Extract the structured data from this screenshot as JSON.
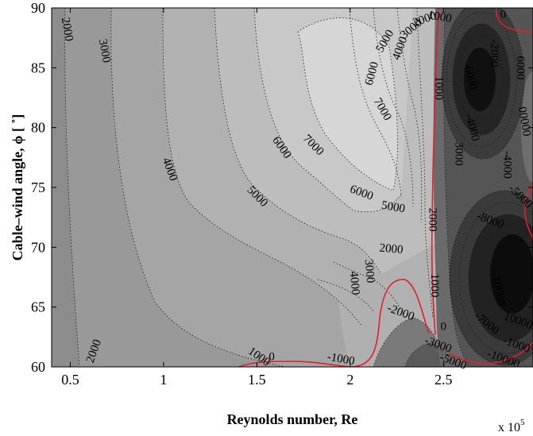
{
  "chart_data": {
    "type": "contour",
    "title": "",
    "xlabel": "Reynolds number, Re",
    "ylabel": "Cable–wind angle, ϕ [ ˚]",
    "x_multiplier_label": "x 10",
    "x_multiplier_exp": "5",
    "xlim": [
      0.4,
      2.98
    ],
    "ylim": [
      60,
      90
    ],
    "xticks": [
      0.5,
      1,
      1.5,
      2,
      2.5
    ],
    "xtick_labels": [
      "0.5",
      "1",
      "1.5",
      "2",
      "2.5"
    ],
    "yticks": [
      60,
      65,
      70,
      75,
      80,
      85,
      90
    ],
    "ytick_labels": [
      "60",
      "65",
      "70",
      "75",
      "80",
      "85",
      "90"
    ],
    "zero_contour_color": "#e0202a",
    "fill_light": "#d9d9d9",
    "fill_dark": "#111111",
    "contour_labels": [
      {
        "text": "2000",
        "x": 0.48,
        "y": 88.2,
        "angle": 80
      },
      {
        "text": "3000",
        "x": 0.68,
        "y": 86.4,
        "angle": 80
      },
      {
        "text": "4000",
        "x": 1.03,
        "y": 76.5,
        "angle": 70
      },
      {
        "text": "5000",
        "x": 1.5,
        "y": 74.2,
        "angle": 45
      },
      {
        "text": "6000",
        "x": 1.63,
        "y": 78.3,
        "angle": 55
      },
      {
        "text": "7000",
        "x": 1.8,
        "y": 78.5,
        "angle": 45
      },
      {
        "text": "7000",
        "x": 2.17,
        "y": 81.5,
        "angle": 60
      },
      {
        "text": "6000",
        "x": 2.12,
        "y": 84.5,
        "angle": -75
      },
      {
        "text": "5000",
        "x": 2.19,
        "y": 87.2,
        "angle": -60
      },
      {
        "text": "4000",
        "x": 2.27,
        "y": 86.6,
        "angle": -70
      },
      {
        "text": "3000",
        "x": 2.33,
        "y": 88.2,
        "angle": -40
      },
      {
        "text": "2000",
        "x": 2.4,
        "y": 89.0,
        "angle": -20
      },
      {
        "text": "1000",
        "x": 2.48,
        "y": 89.2,
        "angle": 10
      },
      {
        "text": "6000",
        "x": 2.06,
        "y": 74.5,
        "angle": 20
      },
      {
        "text": "5000",
        "x": 2.23,
        "y": 73.3,
        "angle": 10
      },
      {
        "text": "2000",
        "x": 2.22,
        "y": 69.8,
        "angle": 5
      },
      {
        "text": "3000",
        "x": 2.1,
        "y": 68.0,
        "angle": 85
      },
      {
        "text": "4000",
        "x": 2.02,
        "y": 67.0,
        "angle": 85
      },
      {
        "text": "1000",
        "x": 2.47,
        "y": 83.3,
        "angle": 90
      },
      {
        "text": "3000",
        "x": 2.58,
        "y": 77.8,
        "angle": 90
      },
      {
        "text": "2000",
        "x": 2.44,
        "y": 72.3,
        "angle": 90
      },
      {
        "text": "1000",
        "x": 2.45,
        "y": 66.8,
        "angle": 90
      },
      {
        "text": "0",
        "x": 2.5,
        "y": 63.3,
        "angle": 0
      },
      {
        "text": "0",
        "x": 2.82,
        "y": 89.4,
        "angle": 0
      },
      {
        "text": "0",
        "x": 1.58,
        "y": 60.8,
        "angle": 0
      },
      {
        "text": "-1000",
        "x": 1.95,
        "y": 60.6,
        "angle": 10
      },
      {
        "text": "-2000",
        "x": 2.27,
        "y": 64.5,
        "angle": 20
      },
      {
        "text": "-3000",
        "x": 2.47,
        "y": 61.8,
        "angle": 20
      },
      {
        "text": "-5000",
        "x": 2.55,
        "y": 60.4,
        "angle": 20
      },
      {
        "text": "1000",
        "x": 1.51,
        "y": 60.8,
        "angle": 35
      },
      {
        "text": "2000",
        "x": 0.63,
        "y": 61.3,
        "angle": -70
      },
      {
        "text": "-2000",
        "x": 2.77,
        "y": 86.2,
        "angle": 90
      },
      {
        "text": "-4000",
        "x": 2.65,
        "y": 80.0,
        "angle": 75
      },
      {
        "text": "-4000",
        "x": 2.84,
        "y": 76.9,
        "angle": 90
      },
      {
        "text": "-6000",
        "x": 2.64,
        "y": 84.3,
        "angle": 75
      },
      {
        "text": "-5000",
        "x": 2.91,
        "y": 74.2,
        "angle": 45
      },
      {
        "text": "-8000",
        "x": 2.75,
        "y": 72.2,
        "angle": 20
      },
      {
        "text": "-7000",
        "x": 2.73,
        "y": 63.6,
        "angle": 40
      },
      {
        "text": "-10000",
        "x": 2.79,
        "y": 66.5,
        "angle": 80
      },
      {
        "text": "10000",
        "x": 2.9,
        "y": 63.8,
        "angle": 20
      },
      {
        "text": "-10000",
        "x": 2.82,
        "y": 60.6,
        "angle": 20
      },
      {
        "text": "-1000",
        "x": 2.89,
        "y": 61.8,
        "angle": 20
      },
      {
        "text": "6000",
        "x": 2.91,
        "y": 85.0,
        "angle": 90
      },
      {
        "text": "00000",
        "x": 2.93,
        "y": 80.5,
        "angle": 80
      }
    ]
  }
}
